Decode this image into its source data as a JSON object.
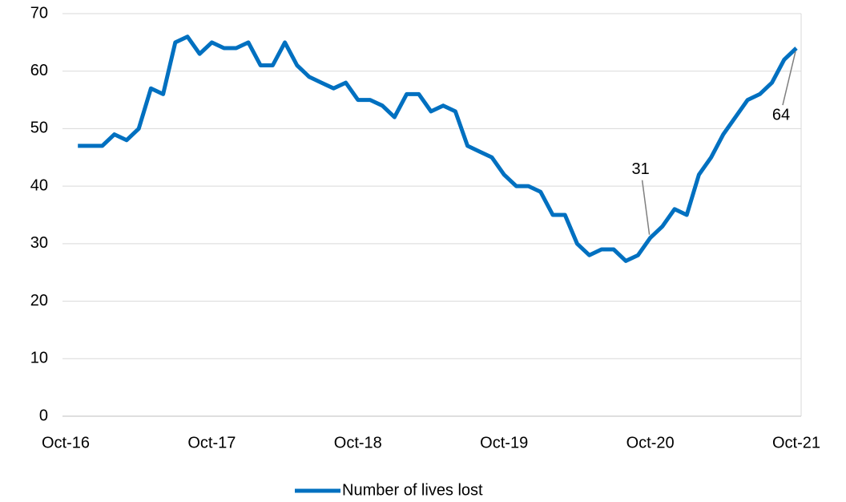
{
  "chart_data": {
    "type": "line",
    "categories": [
      "Oct-16",
      null,
      null,
      null,
      null,
      null,
      null,
      null,
      null,
      null,
      null,
      null,
      "Oct-17",
      null,
      null,
      null,
      null,
      null,
      null,
      null,
      null,
      null,
      null,
      null,
      "Oct-18",
      null,
      null,
      null,
      null,
      null,
      null,
      null,
      null,
      null,
      null,
      null,
      "Oct-19",
      null,
      null,
      null,
      null,
      null,
      null,
      null,
      null,
      null,
      null,
      null,
      "Oct-20",
      null,
      null,
      null,
      null,
      null,
      null,
      null,
      null,
      null,
      null,
      null,
      "Oct-21"
    ],
    "series": [
      {
        "name": "Number of lives lost",
        "color": "#0070c0",
        "values": [
          null,
          47,
          47,
          47,
          49,
          48,
          50,
          57,
          56,
          65,
          66,
          63,
          65,
          64,
          64,
          65,
          61,
          61,
          65,
          61,
          59,
          58,
          57,
          58,
          55,
          55,
          54,
          52,
          56,
          56,
          53,
          54,
          53,
          47,
          46,
          45,
          42,
          40,
          40,
          39,
          35,
          35,
          30,
          28,
          29,
          29,
          27,
          28,
          31,
          33,
          36,
          35,
          42,
          45,
          49,
          52,
          55,
          56,
          58,
          62,
          64
        ],
        "value_labels": [
          null,
          null,
          null,
          null,
          null,
          null,
          null,
          null,
          null,
          null,
          null,
          null,
          null,
          null,
          null,
          null,
          null,
          null,
          null,
          null,
          null,
          null,
          null,
          null,
          null,
          null,
          null,
          null,
          null,
          null,
          null,
          null,
          null,
          null,
          null,
          null,
          null,
          null,
          null,
          null,
          null,
          null,
          null,
          null,
          null,
          null,
          null,
          null,
          "31",
          null,
          null,
          null,
          null,
          null,
          null,
          null,
          null,
          null,
          null,
          null,
          "64"
        ]
      }
    ],
    "ylim": [
      0,
      70
    ],
    "yticks": [
      0,
      10,
      20,
      30,
      40,
      50,
      60,
      70
    ],
    "grid": true,
    "legend": "bottom"
  }
}
